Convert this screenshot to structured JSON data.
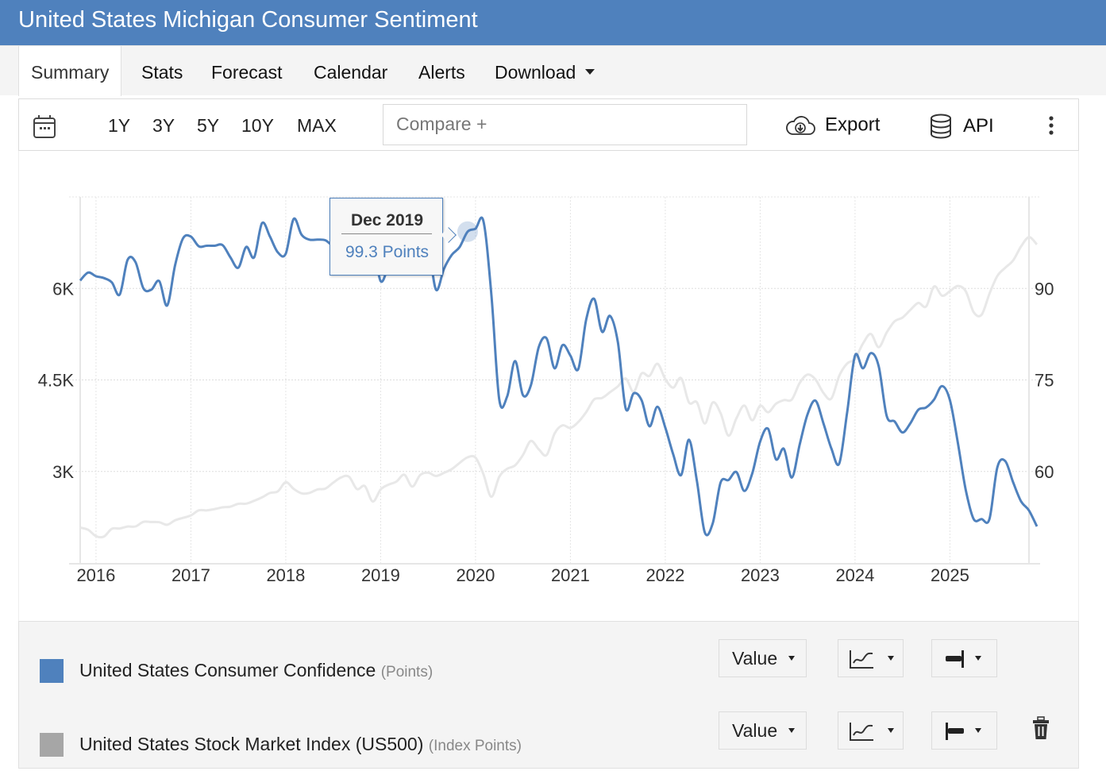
{
  "header": {
    "title": "United States Michigan Consumer Sentiment"
  },
  "tabs": [
    {
      "label": "Summary",
      "active": true
    },
    {
      "label": "Stats"
    },
    {
      "label": "Forecast"
    },
    {
      "label": "Calendar"
    },
    {
      "label": "Alerts"
    },
    {
      "label": "Download",
      "has_dropdown": true
    }
  ],
  "toolbar": {
    "calendar_icon": "calendar-icon",
    "ranges": [
      "1Y",
      "3Y",
      "5Y",
      "10Y",
      "MAX"
    ],
    "compare_placeholder": "Compare +",
    "export_label": "Export",
    "export_icon": "cloud-download-icon",
    "api_label": "API",
    "api_icon": "database-icon",
    "more_icon": "more-vertical-icon"
  },
  "tooltip": {
    "date": "Dec 2019",
    "value": "99.3 Points"
  },
  "legend": [
    {
      "name": "United States Consumer Confidence",
      "unit": "(Points)",
      "color": "#4f81bd",
      "mode": "Value",
      "chart_icon": "line-chart-icon",
      "axis_icon": "axis-right-icon"
    },
    {
      "name": "United States Stock Market Index (US500)",
      "unit": "(Index Points)",
      "color": "#a6a6a6",
      "mode": "Value",
      "chart_icon": "line-chart-icon",
      "axis_icon": "axis-left-icon",
      "delete_icon": "trash-icon"
    }
  ],
  "colors": {
    "header": "#4f81bd",
    "series_primary": "#4f81bd",
    "series_secondary": "#e8e8e8"
  },
  "chart_data": {
    "type": "line",
    "title": "United States Michigan Consumer Sentiment",
    "x_start": "2015-11",
    "x_end": "2025-11",
    "x_ticks": [
      "2016",
      "2017",
      "2018",
      "2019",
      "2020",
      "2021",
      "2022",
      "2023",
      "2024",
      "2025"
    ],
    "y_left": {
      "label": "Index Points",
      "ticks": [
        "3K",
        "4.5K",
        "6K"
      ],
      "tick_values": [
        3000,
        4500,
        6000
      ],
      "range": [
        1500,
        7500
      ]
    },
    "y_right": {
      "label": "Points",
      "ticks": [
        "60",
        "75",
        "90"
      ],
      "tick_values": [
        60,
        75,
        90
      ],
      "range": [
        45,
        105
      ]
    },
    "grid": true,
    "highlight": {
      "series": "United States Consumer Confidence",
      "date": "2019-12",
      "value": 99.3
    },
    "series": [
      {
        "name": "United States Consumer Confidence",
        "unit": "Points",
        "axis": "right",
        "color": "#4f81bd",
        "start": "2015-11",
        "values": [
          91.3,
          92.6,
          92.0,
          91.7,
          91.0,
          89.0,
          94.7,
          94.3,
          90.0,
          89.8,
          91.2,
          87.2,
          93.8,
          98.2,
          98.5,
          96.9,
          97.0,
          97.0,
          97.1,
          95.1,
          93.4,
          96.8,
          95.1,
          100.7,
          98.5,
          95.9,
          95.7,
          101.4,
          98.8,
          98.0,
          98.0,
          97.9,
          97.1,
          98.2,
          96.2,
          98.6,
          98.3,
          97.5,
          91.2,
          93.8,
          97.2,
          97.9,
          98.4,
          98.2,
          97.2,
          89.8,
          93.2,
          95.5,
          96.8,
          99.3,
          99.8,
          101.0,
          89.1,
          71.8,
          72.3,
          78.1,
          72.5,
          74.1,
          80.4,
          81.8,
          76.9,
          80.7,
          79.0,
          76.8,
          84.9,
          88.3,
          82.9,
          85.5,
          81.2,
          70.3,
          72.8,
          71.7,
          67.4,
          70.6,
          67.2,
          62.8,
          59.4,
          65.2,
          58.4,
          50.0,
          51.5,
          58.2,
          58.6,
          59.9,
          56.8,
          59.7,
          64.9,
          67.0,
          62.0,
          63.7,
          59.0,
          64.4,
          69.4,
          71.6,
          67.9,
          63.8,
          61.3,
          69.7,
          79.0,
          76.9,
          79.4,
          77.2,
          69.1,
          68.2,
          66.4,
          67.9,
          70.1,
          70.5,
          71.8,
          74.0,
          71.7,
          64.7,
          57.0,
          52.2,
          52.2,
          52.2,
          60.7,
          61.7,
          58.2,
          55.1,
          53.6,
          51.0
        ]
      },
      {
        "name": "United States Stock Market Index (US500)",
        "unit": "Index Points",
        "axis": "left",
        "color": "#e8e8e8",
        "start": "2015-11",
        "values": [
          2080,
          2044,
          1940,
          1932,
          2060,
          2065,
          2097,
          2099,
          2174,
          2171,
          2168,
          2126,
          2199,
          2239,
          2279,
          2363,
          2362,
          2384,
          2411,
          2423,
          2470,
          2472,
          2519,
          2575,
          2647,
          2674,
          2824,
          2714,
          2641,
          2648,
          2705,
          2718,
          2816,
          2902,
          2914,
          2712,
          2760,
          2507,
          2704,
          2784,
          2834,
          2946,
          2752,
          2942,
          2980,
          2926,
          2977,
          3038,
          3141,
          3231,
          3226,
          2954,
          2585,
          2912,
          3044,
          3100,
          3271,
          3500,
          3363,
          3270,
          3622,
          3756,
          3714,
          3811,
          3973,
          4181,
          4204,
          4298,
          4395,
          4523,
          4307,
          4605,
          4567,
          4766,
          4516,
          4374,
          4530,
          4131,
          4132,
          3785,
          4130,
          3955,
          3586,
          3872,
          4080,
          3839,
          4077,
          3970,
          4109,
          4169,
          4180,
          4450,
          4589,
          4508,
          4288,
          4194,
          4568,
          4770,
          4846,
          5096,
          5254,
          5036,
          5278,
          5460,
          5522,
          5648,
          5762,
          5705,
          6032,
          5881,
          5955,
          6041,
          5955,
          5612,
          5569,
          5912,
          6205,
          6339,
          6460,
          6688,
          6840,
          6720
        ]
      }
    ]
  }
}
